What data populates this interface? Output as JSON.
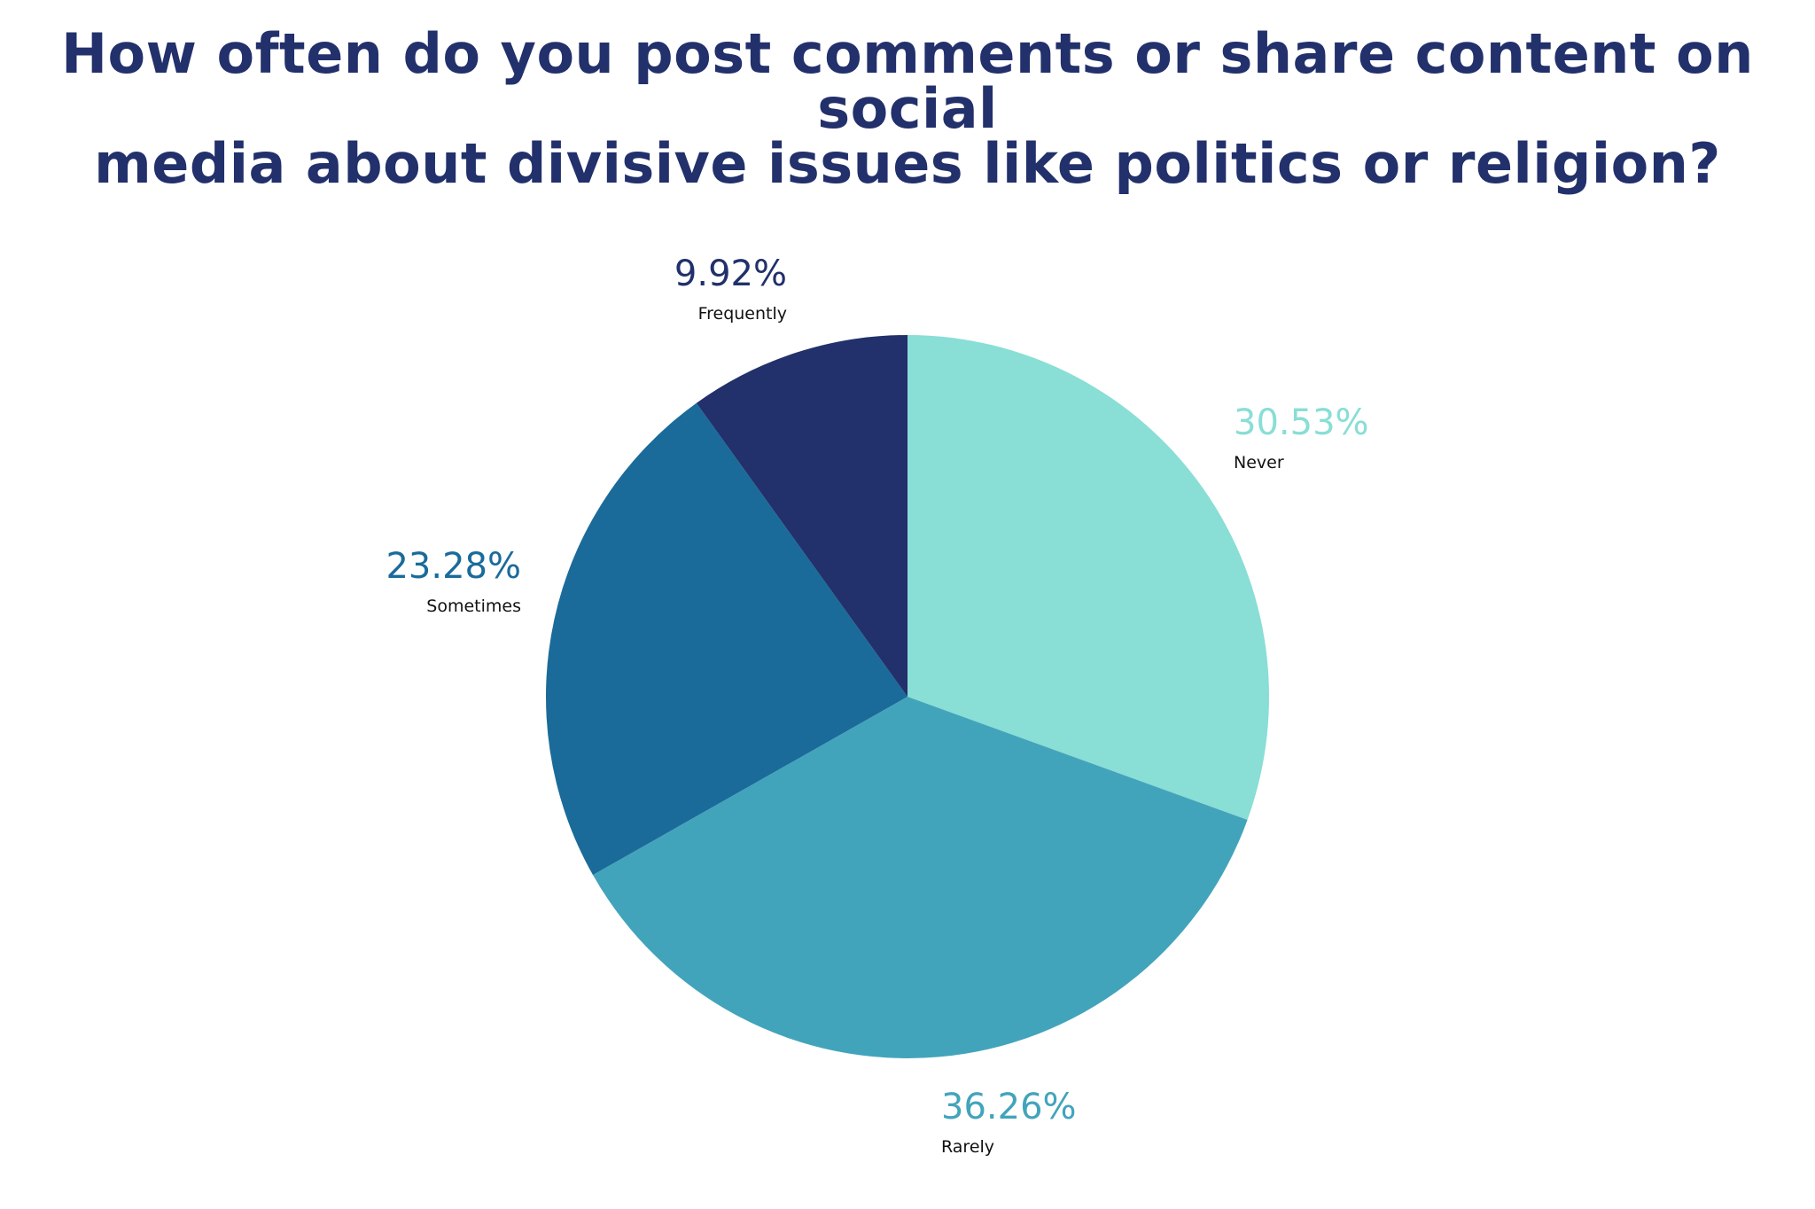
{
  "chart_data": {
    "type": "pie",
    "title_lines": [
      "How often do you post comments or share content on social",
      "media about divisive issues like politics or religion?"
    ],
    "start_angle_deg": 0,
    "direction": "clockwise",
    "slices": [
      {
        "label": "Never",
        "value": 30.53,
        "display": "30.53%",
        "color": "#89ded5"
      },
      {
        "label": "Rarely",
        "value": 36.26,
        "display": "36.26%",
        "color": "#42a4bb"
      },
      {
        "label": "Sometimes",
        "value": 23.28,
        "display": "23.28%",
        "color": "#1a6b9a"
      },
      {
        "label": "Frequently",
        "value": 9.92,
        "display": "9.92%",
        "color": "#22306b"
      }
    ]
  },
  "colors": {
    "title": "#22306b",
    "category_label": "#111111",
    "background": "#ffffff"
  }
}
